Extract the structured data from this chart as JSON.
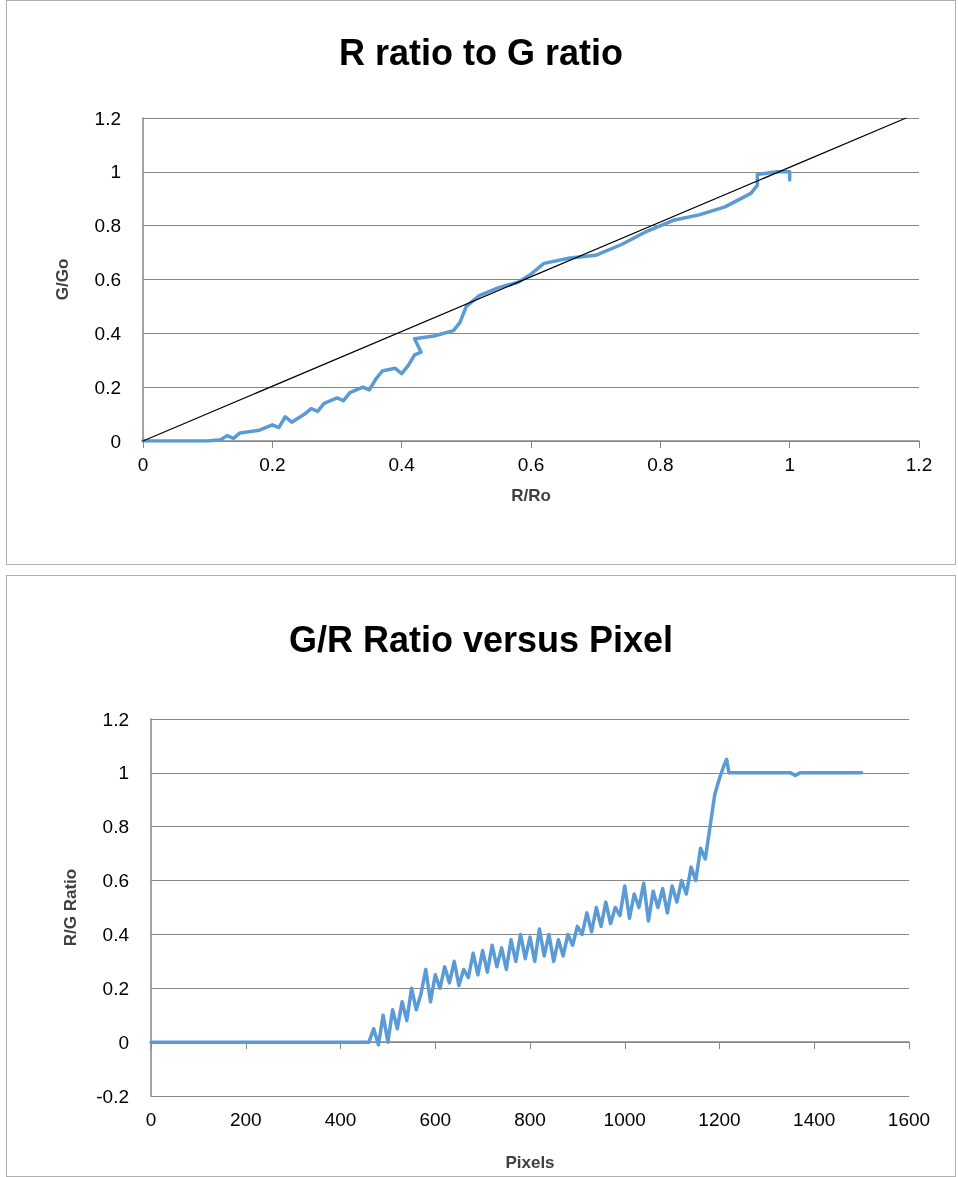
{
  "chart_data": [
    {
      "type": "line",
      "title": "R ratio to G ratio",
      "xlabel": "R/Ro",
      "ylabel": "G/Go",
      "xlim": [
        0,
        1.2
      ],
      "xticks": [
        0,
        0.2,
        0.4,
        0.6,
        0.8,
        1,
        1.2
      ],
      "ylim": [
        0,
        1.2
      ],
      "yticks": [
        0,
        0.2,
        0.4,
        0.6,
        0.8,
        1,
        1.2
      ],
      "grid": "y",
      "marker": "none",
      "line_style": "solid",
      "series": [
        {
          "color": "#5b9bd5",
          "x": [
            0,
            0.1,
            0.12,
            0.13,
            0.14,
            0.15,
            0.18,
            0.2,
            0.21,
            0.22,
            0.23,
            0.25,
            0.26,
            0.27,
            0.28,
            0.3,
            0.31,
            0.32,
            0.34,
            0.35,
            0.36,
            0.37,
            0.39,
            0.4,
            0.41,
            0.42,
            0.43,
            0.42,
            0.45,
            0.48,
            0.49,
            0.5,
            0.52,
            0.55,
            0.58,
            0.6,
            0.62,
            0.66,
            0.7,
            0.74,
            0.78,
            0.82,
            0.86,
            0.9,
            0.94,
            0.95,
            0.95,
            0.98,
            1,
            1
          ],
          "values": [
            0,
            0,
            0.005,
            0.02,
            0.01,
            0.03,
            0.04,
            0.06,
            0.05,
            0.09,
            0.07,
            0.1,
            0.12,
            0.11,
            0.14,
            0.16,
            0.15,
            0.18,
            0.2,
            0.19,
            0.23,
            0.26,
            0.27,
            0.25,
            0.28,
            0.32,
            0.33,
            0.38,
            0.39,
            0.41,
            0.44,
            0.5,
            0.54,
            0.57,
            0.59,
            0.62,
            0.66,
            0.68,
            0.69,
            0.73,
            0.78,
            0.82,
            0.84,
            0.87,
            0.92,
            0.95,
            0.99,
            1,
            1,
            0.97
          ]
        },
        {
          "color": "#000000",
          "x": [
            0,
            1.18
          ],
          "values": [
            0,
            1.2
          ]
        }
      ]
    },
    {
      "type": "line",
      "title": "G/R Ratio versus Pixel",
      "xlabel": "Pixels",
      "ylabel": "R/G Ratio",
      "xlim": [
        0,
        1600
      ],
      "xticks": [
        0,
        200,
        400,
        600,
        800,
        1000,
        1200,
        1400,
        1600
      ],
      "ylim": [
        -0.2,
        1.2
      ],
      "yticks": [
        -0.2,
        0,
        0.2,
        0.4,
        0.6,
        0.8,
        1,
        1.2
      ],
      "grid": "y",
      "marker": "none",
      "line_style": "solid",
      "series": [
        {
          "color": "#5b9bd5",
          "x": [
            0,
            460,
            470,
            480,
            490,
            500,
            510,
            520,
            530,
            540,
            550,
            560,
            570,
            580,
            590,
            600,
            610,
            620,
            630,
            640,
            650,
            660,
            670,
            680,
            690,
            700,
            710,
            720,
            730,
            740,
            750,
            760,
            770,
            780,
            790,
            800,
            810,
            820,
            830,
            840,
            850,
            860,
            870,
            880,
            890,
            900,
            910,
            920,
            930,
            940,
            950,
            960,
            970,
            980,
            990,
            1000,
            1010,
            1020,
            1030,
            1040,
            1050,
            1060,
            1070,
            1080,
            1090,
            1100,
            1110,
            1120,
            1130,
            1140,
            1150,
            1160,
            1170,
            1180,
            1190,
            1200,
            1210,
            1215,
            1220,
            1350,
            1360,
            1370,
            1500
          ],
          "values": [
            0,
            0,
            0.05,
            -0.01,
            0.1,
            0,
            0.12,
            0.05,
            0.15,
            0.08,
            0.2,
            0.12,
            0.18,
            0.27,
            0.15,
            0.25,
            0.2,
            0.28,
            0.22,
            0.3,
            0.21,
            0.27,
            0.24,
            0.33,
            0.25,
            0.34,
            0.26,
            0.36,
            0.28,
            0.35,
            0.27,
            0.38,
            0.3,
            0.4,
            0.31,
            0.39,
            0.3,
            0.42,
            0.32,
            0.4,
            0.3,
            0.38,
            0.32,
            0.4,
            0.36,
            0.43,
            0.4,
            0.48,
            0.41,
            0.5,
            0.43,
            0.52,
            0.44,
            0.5,
            0.47,
            0.58,
            0.46,
            0.55,
            0.5,
            0.59,
            0.45,
            0.56,
            0.5,
            0.57,
            0.48,
            0.58,
            0.52,
            0.6,
            0.55,
            0.65,
            0.6,
            0.72,
            0.68,
            0.8,
            0.92,
            0.98,
            1.03,
            1.05,
            1,
            1,
            0.99,
            1,
            1
          ]
        }
      ]
    }
  ]
}
